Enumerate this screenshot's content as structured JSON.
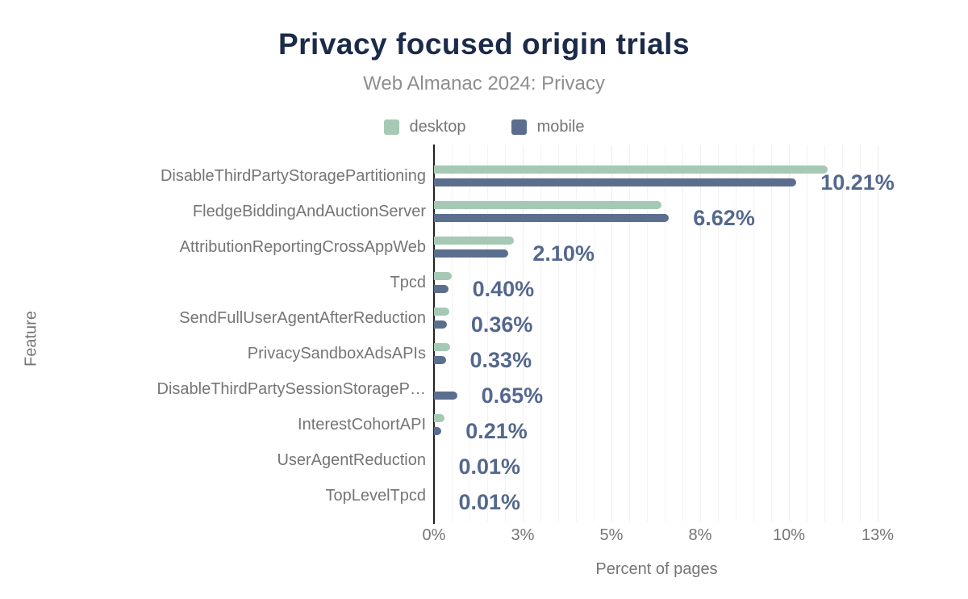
{
  "header": {
    "title": "Privacy focused origin trials",
    "subtitle": "Web Almanac 2024: Privacy"
  },
  "legend": [
    {
      "label": "desktop",
      "color": "#a5c9b4"
    },
    {
      "label": "mobile",
      "color": "#5b6e8e"
    }
  ],
  "colors": {
    "title": "#1b2b49",
    "muted_text": "#757575",
    "subtitle_text": "#8e8e8e",
    "value_label": "#54688e",
    "desktop_bar": "#a5c9b4",
    "mobile_bar": "#5b6e8e",
    "axis_line": "#212121",
    "gridline": "#f0f0f0"
  },
  "chart_data": {
    "type": "bar",
    "orientation": "horizontal",
    "title": "Privacy focused origin trials",
    "subtitle": "Web Almanac 2024: Privacy",
    "xlabel": "Percent of pages",
    "ylabel": "Feature",
    "grid": true,
    "legend_position": "top",
    "x_tick_labels": [
      "0%",
      "3%",
      "5%",
      "8%",
      "10%",
      "13%"
    ],
    "x_tick_values": [
      0,
      2.5,
      5,
      7.5,
      10,
      12.5
    ],
    "xlim": [
      0,
      12.55
    ],
    "categories": [
      "DisableThirdPartyStoragePartitioning",
      "FledgeBiddingAndAuctionServer",
      "AttributionReportingCrossAppWeb",
      "Tpcd",
      "SendFullUserAgentAfterReduction",
      "PrivacySandboxAdsAPIs",
      "DisableThirdPartySessionStorageP…",
      "InterestCohortAPI",
      "UserAgentReduction",
      "TopLevelTpcd"
    ],
    "series": [
      {
        "name": "desktop",
        "color": "#a5c9b4",
        "values": [
          11.1,
          6.4,
          2.25,
          0.5,
          0.44,
          0.45,
          0,
          0.3,
          0.01,
          0.01
        ]
      },
      {
        "name": "mobile",
        "color": "#5b6e8e",
        "values": [
          10.21,
          6.62,
          2.1,
          0.4,
          0.36,
          0.33,
          0.65,
          0.21,
          0.01,
          0.01
        ]
      }
    ],
    "value_labels": [
      "10.21%",
      "6.62%",
      "2.10%",
      "0.40%",
      "0.36%",
      "0.33%",
      "0.65%",
      "0.21%",
      "0.01%",
      "0.01%"
    ],
    "value_label_series": "mobile"
  }
}
